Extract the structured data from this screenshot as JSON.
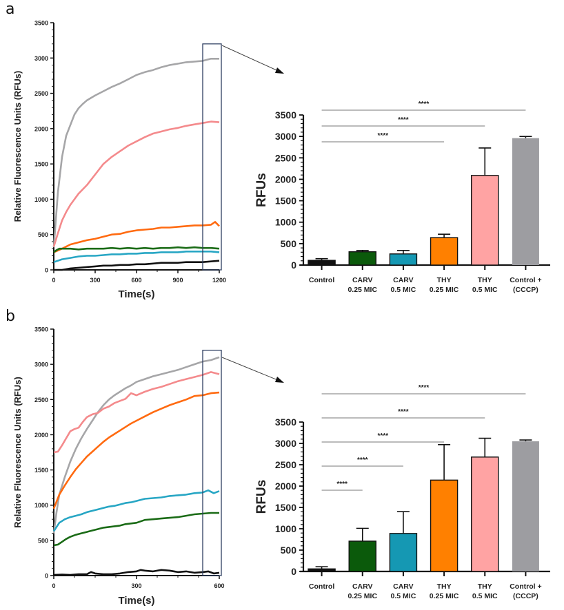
{
  "chart_data": [
    {
      "id": "a-line",
      "panel_label": "a",
      "type": "line",
      "xlabel": "Time(s)",
      "ylabel": "Relative Fluorescence Units (RFUs)",
      "xlim": [
        0,
        1200
      ],
      "ylim": [
        0,
        3500
      ],
      "xticks": [
        0,
        300,
        600,
        900,
        1200
      ],
      "yticks": [
        0,
        500,
        1000,
        1500,
        2000,
        2500,
        3000,
        3500
      ],
      "highlight_window": [
        1080,
        1200
      ],
      "series": [
        {
          "name": "Control +(CCCP)",
          "color": "#a6a6a8",
          "x": [
            0,
            30,
            60,
            90,
            120,
            150,
            180,
            210,
            240,
            300,
            360,
            420,
            480,
            540,
            600,
            660,
            720,
            780,
            840,
            900,
            960,
            1020,
            1080,
            1140,
            1200
          ],
          "y": [
            320,
            1100,
            1600,
            1900,
            2050,
            2200,
            2290,
            2350,
            2400,
            2470,
            2530,
            2590,
            2640,
            2700,
            2760,
            2800,
            2830,
            2870,
            2900,
            2920,
            2940,
            2950,
            2960,
            2990,
            2990
          ]
        },
        {
          "name": "THY 0.5 MIC",
          "color": "#f48a8c",
          "x": [
            0,
            30,
            60,
            90,
            120,
            150,
            180,
            240,
            300,
            360,
            420,
            480,
            540,
            600,
            660,
            720,
            780,
            840,
            900,
            960,
            1020,
            1080,
            1140,
            1200
          ],
          "y": [
            330,
            520,
            700,
            820,
            920,
            1000,
            1080,
            1200,
            1350,
            1500,
            1600,
            1680,
            1760,
            1820,
            1880,
            1930,
            1960,
            1990,
            2010,
            2040,
            2060,
            2080,
            2100,
            2090
          ]
        },
        {
          "name": "THY 0.25 MIC",
          "color": "#ff6a10",
          "x": [
            0,
            60,
            120,
            180,
            240,
            300,
            360,
            420,
            480,
            540,
            600,
            660,
            720,
            780,
            840,
            900,
            960,
            1020,
            1080,
            1140,
            1170,
            1200
          ],
          "y": [
            250,
            300,
            360,
            390,
            420,
            440,
            470,
            500,
            510,
            540,
            560,
            570,
            580,
            600,
            600,
            610,
            620,
            630,
            630,
            640,
            680,
            620
          ]
        },
        {
          "name": "CARV 0.25 MIC",
          "color": "#1a6b16",
          "x": [
            0,
            20,
            40,
            60,
            120,
            180,
            240,
            300,
            360,
            420,
            480,
            540,
            600,
            660,
            720,
            780,
            840,
            900,
            960,
            1020,
            1080,
            1140,
            1200
          ],
          "y": [
            250,
            280,
            300,
            300,
            300,
            290,
            300,
            300,
            300,
            310,
            300,
            310,
            300,
            310,
            300,
            310,
            310,
            320,
            310,
            320,
            310,
            310,
            300
          ]
        },
        {
          "name": "CARV 0.5 MIC",
          "color": "#27a6c4",
          "x": [
            0,
            60,
            120,
            180,
            240,
            300,
            360,
            420,
            480,
            540,
            600,
            660,
            720,
            780,
            840,
            900,
            960,
            1020,
            1080,
            1140,
            1200
          ],
          "y": [
            110,
            150,
            170,
            190,
            200,
            200,
            210,
            220,
            220,
            230,
            230,
            240,
            240,
            250,
            250,
            250,
            260,
            260,
            260,
            260,
            250
          ]
        },
        {
          "name": "Control",
          "color": "#111111",
          "x": [
            0,
            60,
            90,
            120,
            180,
            240,
            300,
            360,
            420,
            480,
            540,
            600,
            660,
            720,
            780,
            840,
            900,
            960,
            1020,
            1080,
            1140,
            1200
          ],
          "y": [
            0,
            0,
            10,
            20,
            30,
            40,
            50,
            60,
            60,
            70,
            70,
            80,
            80,
            90,
            100,
            100,
            100,
            110,
            110,
            110,
            120,
            130
          ]
        }
      ]
    },
    {
      "id": "a-bar",
      "type": "bar",
      "ylabel": "RFUs",
      "ylim": [
        0,
        3500
      ],
      "yticks": [
        0,
        500,
        1000,
        1500,
        2000,
        2500,
        3000,
        3500
      ],
      "categories": [
        [
          "Control"
        ],
        [
          "CARV",
          "0.25 MIC"
        ],
        [
          "CARV",
          "0.5 MIC"
        ],
        [
          "THY",
          "0.25 MIC"
        ],
        [
          "THY",
          "0.5 MIC"
        ],
        [
          "Control +",
          "(CCCP)"
        ]
      ],
      "values": [
        110,
        310,
        260,
        640,
        2090,
        2960
      ],
      "errors": [
        40,
        30,
        80,
        80,
        640,
        40
      ],
      "colors": [
        "#111111",
        "#0b5a0b",
        "#1598b3",
        "#ff8000",
        "#ffa3a3",
        "#9d9da1"
      ],
      "significance": [
        {
          "from": 0,
          "to": 3,
          "label": "****"
        },
        {
          "from": 0,
          "to": 4,
          "label": "****"
        },
        {
          "from": 0,
          "to": 5,
          "label": "****"
        }
      ]
    },
    {
      "id": "b-line",
      "panel_label": "b",
      "type": "line",
      "xlabel": "Time(s)",
      "ylabel": "Relative Fluorescence Units (RFUs)",
      "xlim": [
        0,
        600
      ],
      "ylim": [
        0,
        3500
      ],
      "xticks": [
        0,
        300,
        600
      ],
      "yticks": [
        0,
        500,
        1000,
        1500,
        2000,
        2500,
        3000,
        3500
      ],
      "highlight_window": [
        540,
        600
      ],
      "series": [
        {
          "name": "Control +(CCCP)",
          "color": "#a6a6a8",
          "x": [
            0,
            10,
            20,
            40,
            60,
            80,
            100,
            120,
            140,
            160,
            180,
            200,
            220,
            240,
            260,
            280,
            300,
            330,
            360,
            390,
            420,
            450,
            480,
            510,
            540,
            570,
            600
          ],
          "y": [
            600,
            900,
            1150,
            1400,
            1620,
            1800,
            1950,
            2080,
            2200,
            2320,
            2420,
            2500,
            2560,
            2610,
            2660,
            2700,
            2750,
            2790,
            2830,
            2860,
            2890,
            2920,
            2960,
            3000,
            3040,
            3060,
            3100
          ]
        },
        {
          "name": "THY 0.5 MIC",
          "color": "#f48a8c",
          "x": [
            0,
            15,
            30,
            45,
            60,
            75,
            90,
            105,
            120,
            140,
            160,
            180,
            200,
            220,
            240,
            260,
            280,
            300,
            330,
            360,
            390,
            420,
            450,
            480,
            510,
            540,
            570,
            600
          ],
          "y": [
            1750,
            1760,
            1850,
            1950,
            2050,
            2080,
            2100,
            2180,
            2250,
            2290,
            2310,
            2370,
            2400,
            2450,
            2480,
            2510,
            2590,
            2560,
            2610,
            2650,
            2680,
            2720,
            2760,
            2790,
            2820,
            2850,
            2890,
            2860
          ]
        },
        {
          "name": "THY 0.25 MIC",
          "color": "#ff6a10",
          "x": [
            0,
            20,
            40,
            60,
            80,
            100,
            120,
            140,
            160,
            180,
            200,
            220,
            240,
            260,
            280,
            300,
            330,
            360,
            390,
            420,
            450,
            480,
            510,
            540,
            570,
            600
          ],
          "y": [
            950,
            1150,
            1280,
            1400,
            1510,
            1600,
            1690,
            1760,
            1830,
            1900,
            1960,
            2010,
            2060,
            2110,
            2160,
            2200,
            2260,
            2320,
            2370,
            2420,
            2460,
            2500,
            2550,
            2560,
            2590,
            2600
          ]
        },
        {
          "name": "CARV 0.5 MIC",
          "color": "#27a6c4",
          "x": [
            0,
            20,
            40,
            60,
            80,
            100,
            120,
            140,
            160,
            180,
            200,
            220,
            240,
            260,
            280,
            300,
            330,
            360,
            390,
            420,
            450,
            480,
            510,
            540,
            560,
            580,
            600
          ],
          "y": [
            630,
            750,
            800,
            830,
            850,
            870,
            900,
            920,
            940,
            960,
            980,
            990,
            1010,
            1030,
            1040,
            1060,
            1090,
            1100,
            1110,
            1130,
            1140,
            1150,
            1170,
            1180,
            1210,
            1170,
            1200
          ]
        },
        {
          "name": "CARV 0.25 MIC",
          "color": "#1a6b16",
          "x": [
            0,
            15,
            30,
            45,
            60,
            80,
            100,
            120,
            140,
            160,
            180,
            200,
            220,
            240,
            260,
            280,
            300,
            330,
            360,
            390,
            420,
            450,
            480,
            510,
            540,
            570,
            600
          ],
          "y": [
            430,
            440,
            480,
            520,
            550,
            580,
            600,
            620,
            640,
            660,
            680,
            690,
            700,
            710,
            730,
            740,
            750,
            790,
            800,
            810,
            820,
            830,
            850,
            870,
            880,
            890,
            890
          ]
        },
        {
          "name": "Control",
          "color": "#111111",
          "x": [
            0,
            30,
            60,
            90,
            120,
            135,
            150,
            180,
            210,
            240,
            270,
            300,
            315,
            330,
            360,
            390,
            420,
            450,
            480,
            510,
            540,
            560,
            580,
            600
          ],
          "y": [
            10,
            15,
            10,
            20,
            20,
            50,
            30,
            20,
            20,
            30,
            50,
            60,
            80,
            70,
            60,
            80,
            70,
            50,
            60,
            40,
            50,
            60,
            30,
            40
          ]
        }
      ]
    },
    {
      "id": "b-bar",
      "type": "bar",
      "ylabel": "RFUs",
      "ylim": [
        0,
        3500
      ],
      "yticks": [
        0,
        500,
        1000,
        1500,
        2000,
        2500,
        3000,
        3500
      ],
      "categories": [
        [
          "Control"
        ],
        [
          "CARV",
          "0.25 MIC"
        ],
        [
          "CARV",
          "0.5 MIC"
        ],
        [
          "THY",
          "0.25 MIC"
        ],
        [
          "THY",
          "0.5 MIC"
        ],
        [
          "Control +",
          "(CCCP)"
        ]
      ],
      "values": [
        60,
        710,
        890,
        2140,
        2680,
        3050
      ],
      "errors": [
        50,
        300,
        510,
        830,
        440,
        30
      ],
      "colors": [
        "#111111",
        "#0b5a0b",
        "#1598b3",
        "#ff8000",
        "#ffa3a3",
        "#9d9da1"
      ],
      "significance": [
        {
          "from": 0,
          "to": 1,
          "label": "****"
        },
        {
          "from": 0,
          "to": 2,
          "label": "****"
        },
        {
          "from": 0,
          "to": 3,
          "label": "****"
        },
        {
          "from": 0,
          "to": 4,
          "label": "****"
        },
        {
          "from": 0,
          "to": 5,
          "label": "****"
        }
      ]
    }
  ]
}
